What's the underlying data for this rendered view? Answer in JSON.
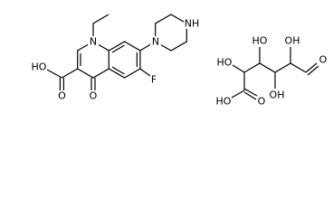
{
  "left_molecule": {
    "labels": [
      "N",
      "N",
      "NH",
      "HO",
      "O",
      "O",
      "F"
    ]
  },
  "right_molecule": {
    "labels": [
      "HO",
      "O",
      "HO",
      "HO",
      "OH",
      "OH",
      "O"
    ]
  }
}
